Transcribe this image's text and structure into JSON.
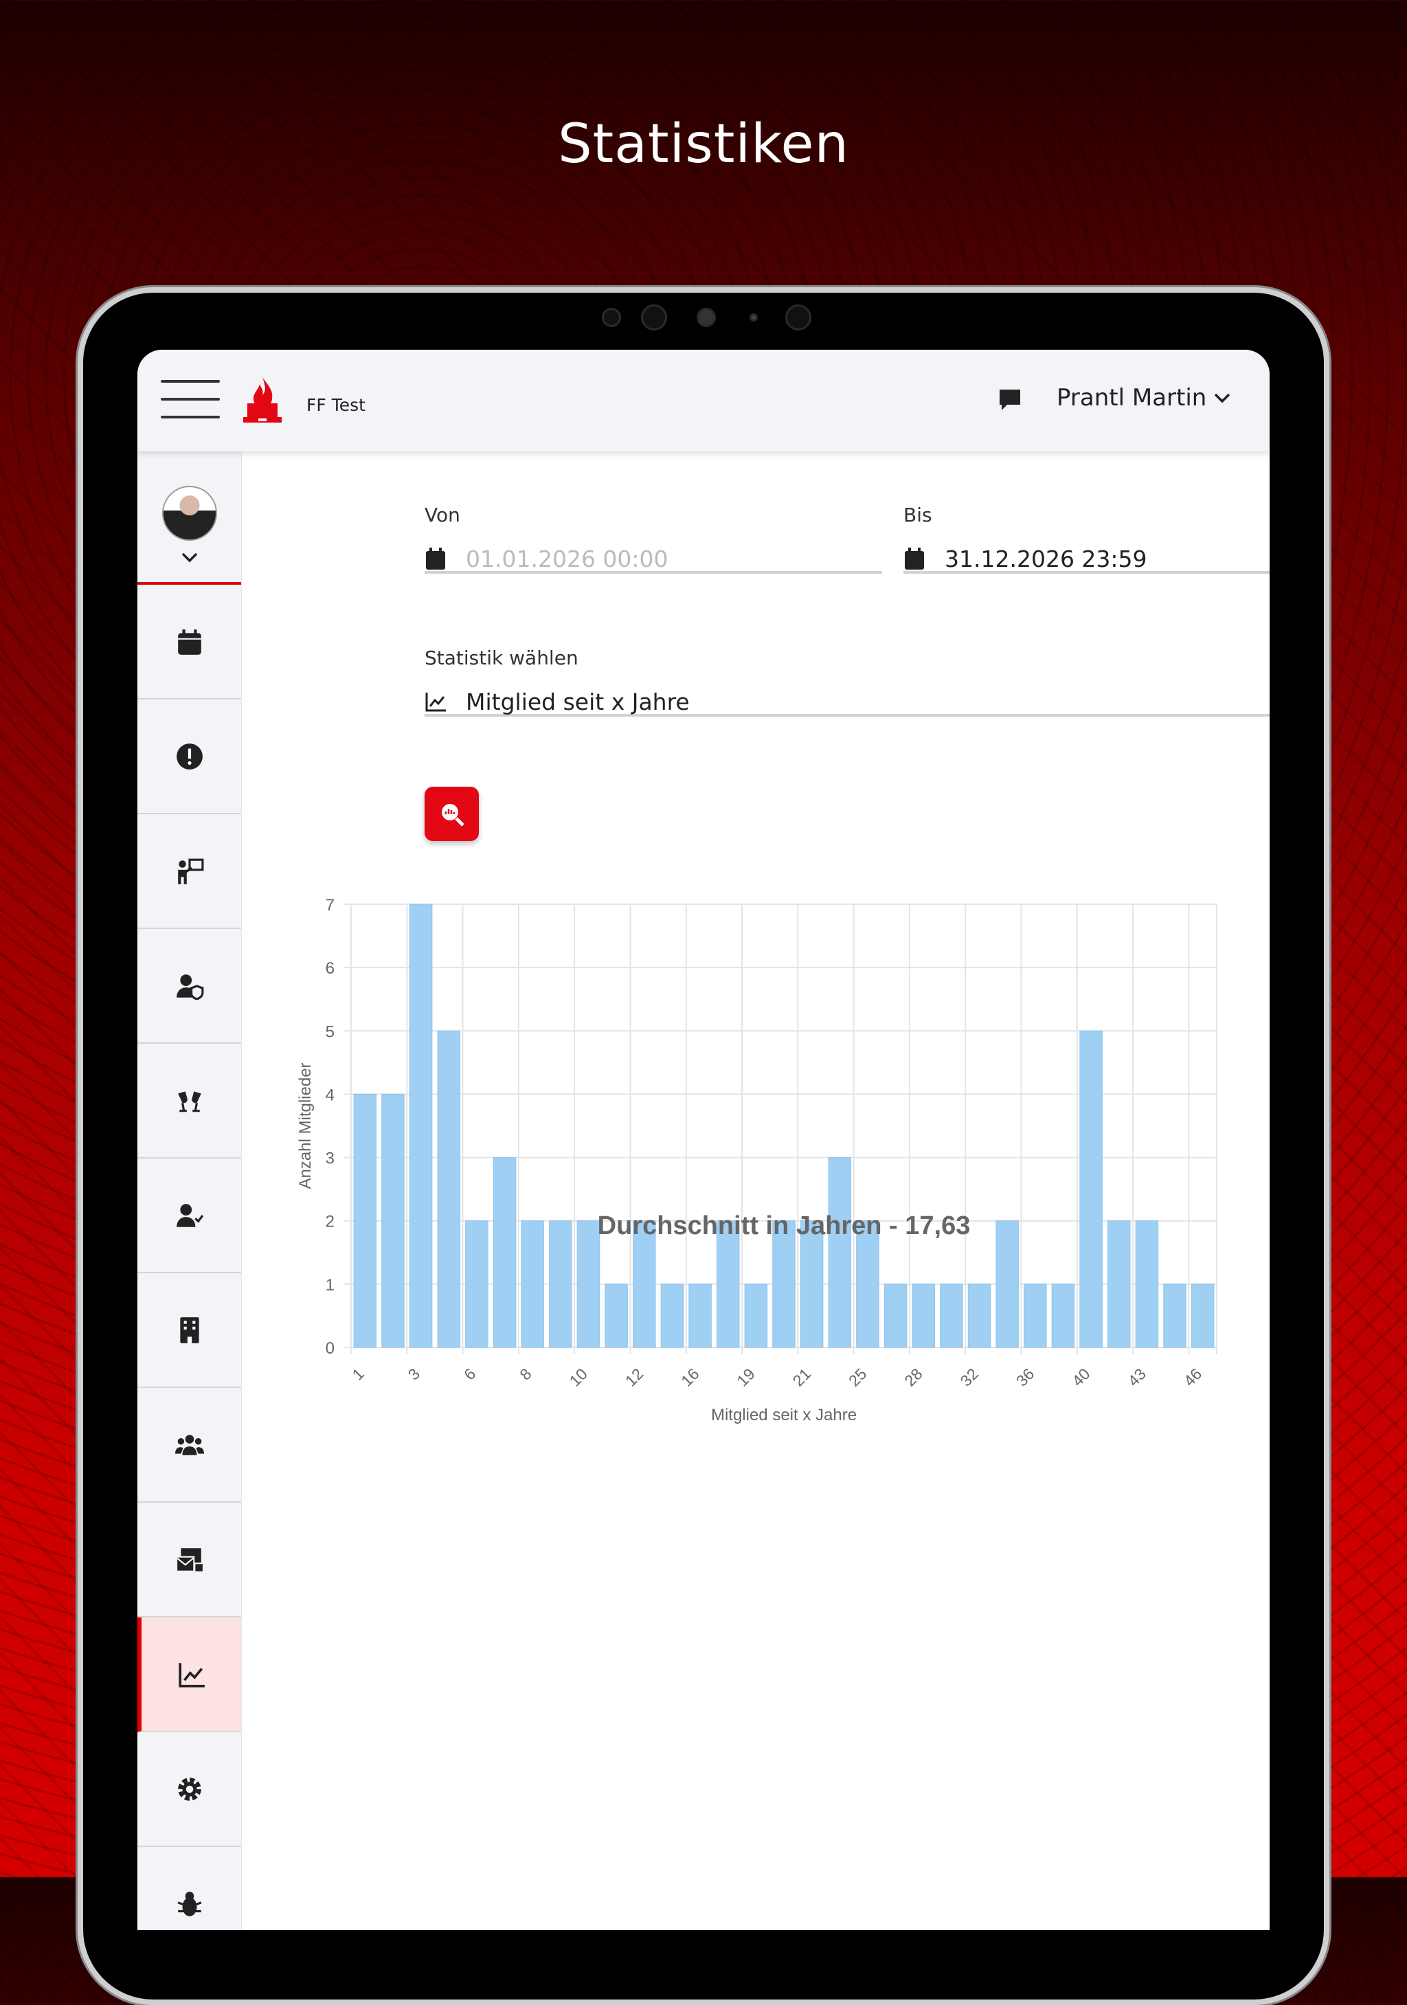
{
  "promo_title": "Statistiken",
  "header": {
    "app_name": "FF Test",
    "user_name": "Prantl Martin"
  },
  "sidebar": {
    "items": [
      {
        "icon": "calendar-icon"
      },
      {
        "icon": "alert-icon"
      },
      {
        "icon": "training-icon"
      },
      {
        "icon": "user-shield-icon"
      },
      {
        "icon": "glasses-cheers-icon"
      },
      {
        "icon": "user-check-icon"
      },
      {
        "icon": "building-icon"
      },
      {
        "icon": "users-icon"
      },
      {
        "icon": "mail-shop-icon"
      },
      {
        "icon": "chart-line-icon",
        "active": true
      },
      {
        "icon": "gear-icon"
      },
      {
        "icon": "bug-icon"
      }
    ]
  },
  "form": {
    "from_label": "Von",
    "from_value": "01.01.2026 00:00",
    "to_label": "Bis",
    "to_value": "31.12.2026 23:59",
    "stat_label": "Statistik wählen",
    "stat_value": "Mitglied seit x Jahre"
  },
  "colors": {
    "accent": "#e30613",
    "bar": "#9fcff3",
    "bar_border": "#8cc5f0"
  },
  "chart_data": {
    "type": "bar",
    "title": "Durchschnitt in Jahren - 17,63",
    "xlabel": "Mitglied seit x Jahre",
    "ylabel": "Anzahl Mitglieder",
    "ylim": [
      0,
      7
    ],
    "yticks": [
      0,
      1,
      2,
      3,
      4,
      5,
      6,
      7
    ],
    "tick_labels": [
      "1",
      "",
      "3",
      "",
      "6",
      "",
      "8",
      "",
      "10",
      "",
      "12",
      "",
      "16",
      "",
      "19",
      "",
      "21",
      "",
      "25",
      "",
      "28",
      "",
      "32",
      "",
      "36",
      "",
      "40",
      "",
      "43",
      "",
      "46"
    ],
    "values": [
      4,
      4,
      7,
      5,
      2,
      3,
      2,
      2,
      2,
      1,
      2,
      1,
      1,
      2,
      1,
      2,
      2,
      3,
      2,
      1,
      1,
      1,
      1,
      2,
      1,
      1,
      5,
      2,
      2,
      1,
      1
    ],
    "grid": true
  }
}
